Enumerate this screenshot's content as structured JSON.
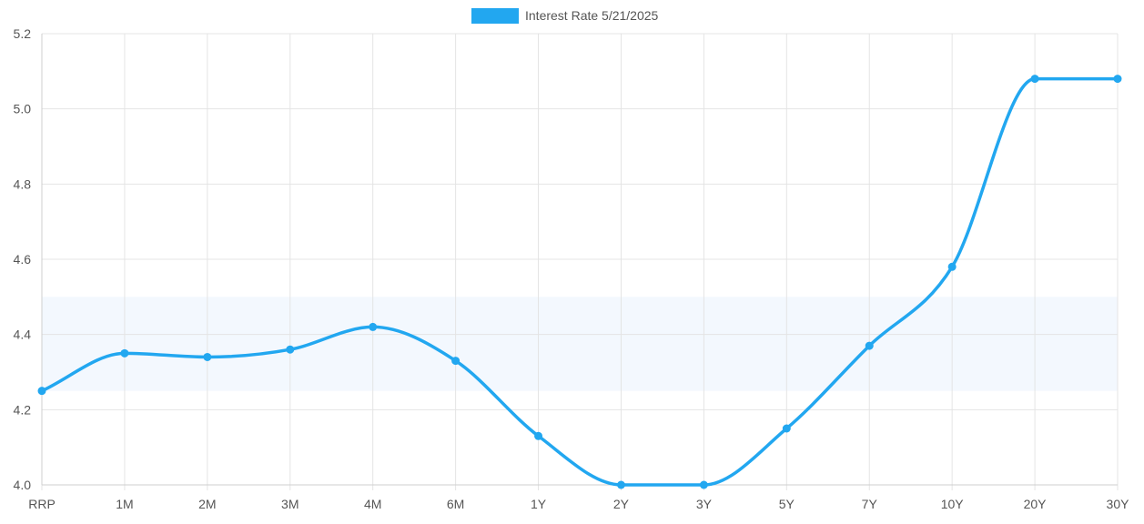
{
  "chart_data": {
    "type": "line",
    "categories": [
      "RRP",
      "1M",
      "2M",
      "3M",
      "4M",
      "6M",
      "1Y",
      "2Y",
      "3Y",
      "5Y",
      "7Y",
      "10Y",
      "20Y",
      "30Y"
    ],
    "series": [
      {
        "name": "Interest Rate 5/21/2025",
        "values": [
          4.25,
          4.35,
          4.34,
          4.36,
          4.42,
          4.33,
          4.13,
          4.0,
          4.0,
          4.15,
          4.37,
          4.58,
          5.08,
          5.08
        ],
        "color": "#22a7f0"
      }
    ],
    "band": {
      "from": 4.25,
      "to": 4.5,
      "color": "#f3f8fe"
    },
    "ylim": [
      4.0,
      5.2
    ],
    "yticks": [
      "4.0",
      "4.2",
      "4.4",
      "4.6",
      "4.8",
      "5.0",
      "5.2"
    ],
    "grid": true,
    "legend_position": "top-center",
    "title": "",
    "xlabel": "",
    "ylabel": ""
  }
}
